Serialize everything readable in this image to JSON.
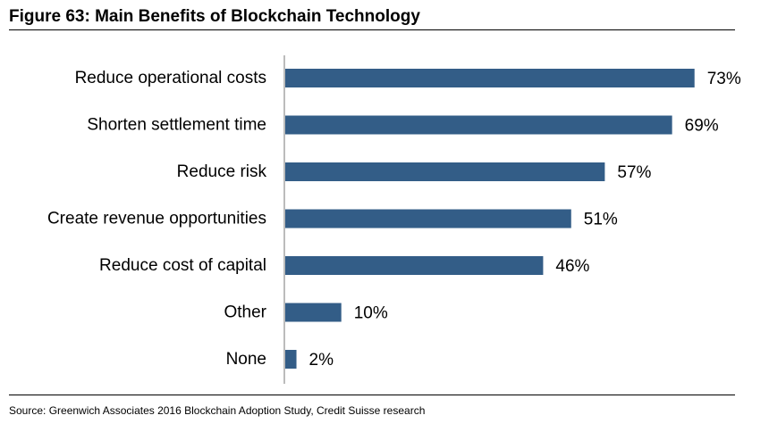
{
  "title": "Figure 63: Main Benefits of Blockchain Technology",
  "source": "Source: Greenwich Associates 2016 Blockchain Adoption Study, Credit Suisse research",
  "colors": {
    "bar": "#335d87",
    "axis": "#a6a6a6",
    "rule": "#000000"
  },
  "chart_data": {
    "type": "bar",
    "orientation": "horizontal",
    "categories": [
      "Reduce operational costs",
      "Shorten settlement time",
      "Reduce risk",
      "Create revenue opportunities",
      "Reduce cost of capital",
      "Other",
      "None"
    ],
    "values": [
      73,
      69,
      57,
      51,
      46,
      10,
      2
    ],
    "value_labels": [
      "73%",
      "69%",
      "57%",
      "51%",
      "46%",
      "10%",
      "2%"
    ],
    "value_unit": "%",
    "xlim": [
      0,
      100
    ],
    "xlabel": "",
    "ylabel": "",
    "grid": false,
    "legend": "none"
  }
}
